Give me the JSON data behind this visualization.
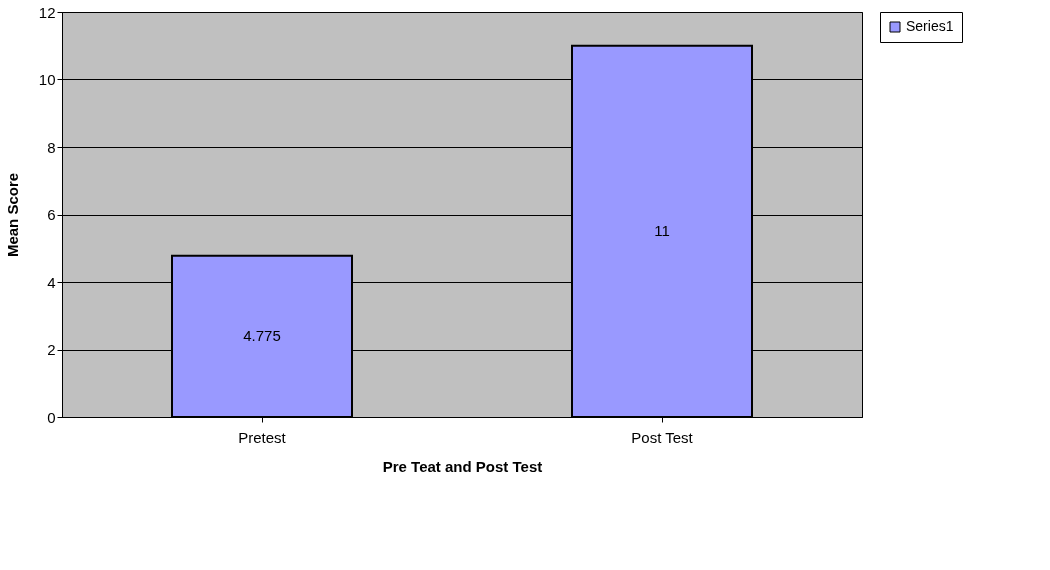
{
  "chart_data": {
    "type": "bar",
    "xlabel": "Pre Teat and Post Test",
    "ylabel": "Mean Score",
    "categories": [
      "Pretest",
      "Post Test"
    ],
    "series": [
      {
        "name": "Series1",
        "color": "#9999ff",
        "values": [
          4.775,
          11
        ]
      }
    ],
    "ylim": [
      0,
      12
    ],
    "yticks": [
      0,
      2,
      4,
      6,
      8,
      10,
      12
    ],
    "grid": "y",
    "legend": "right",
    "data_labels": true
  }
}
